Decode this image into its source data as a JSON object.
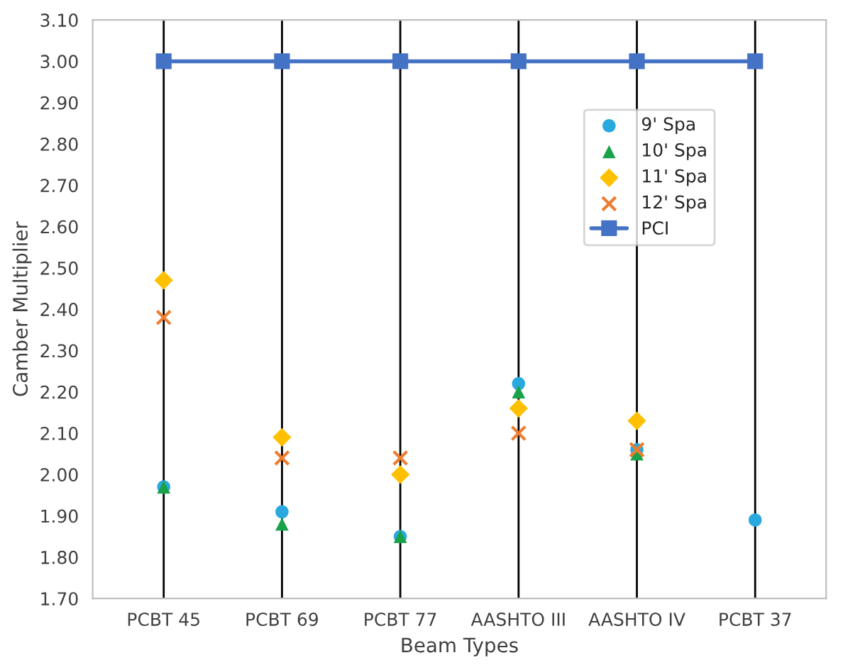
{
  "chart_data": {
    "type": "scatter",
    "xlabel": "Beam Types",
    "ylabel": "Camber Multiplier",
    "categories": [
      "PCBT 45",
      "PCBT 69",
      "PCBT 77",
      "AASHTO III",
      "AASHTO IV",
      "PCBT 37"
    ],
    "series": [
      {
        "name": "9' Spa",
        "marker": "circle",
        "color": "#2aa9e0",
        "values": [
          1.97,
          1.91,
          1.85,
          2.22,
          2.06,
          1.89
        ]
      },
      {
        "name": "10' Spa",
        "marker": "triangle",
        "color": "#1aa24a",
        "values": [
          1.97,
          1.88,
          1.85,
          2.2,
          2.05,
          null
        ]
      },
      {
        "name": "11' Spa",
        "marker": "diamond",
        "color": "#ffc000",
        "values": [
          2.47,
          2.09,
          2.0,
          2.16,
          2.13,
          null
        ]
      },
      {
        "name": "12' Spa",
        "marker": "cross",
        "color": "#ed7d31",
        "values": [
          2.38,
          2.04,
          2.04,
          2.1,
          2.06,
          null
        ]
      },
      {
        "name": "PCI",
        "type": "line",
        "marker": "square",
        "line_style": "solid",
        "color": "#4472c4",
        "values": [
          3.0,
          3.0,
          3.0,
          3.0,
          3.0,
          3.0
        ]
      }
    ],
    "ylim": [
      1.7,
      3.1
    ],
    "yticks": [
      {
        "value": 1.7,
        "label": "1.70"
      },
      {
        "value": 1.8,
        "label": "1.80"
      },
      {
        "value": 1.9,
        "label": "1.90"
      },
      {
        "value": 2.0,
        "label": "2.00"
      },
      {
        "value": 2.1,
        "label": "2.10"
      },
      {
        "value": 2.2,
        "label": "2.20"
      },
      {
        "value": 2.3,
        "label": "2.30"
      },
      {
        "value": 2.4,
        "label": "2.40"
      },
      {
        "value": 2.5,
        "label": "2.50"
      },
      {
        "value": 2.6,
        "label": "2.60"
      },
      {
        "value": 2.7,
        "label": "2.70"
      },
      {
        "value": 2.8,
        "label": "2.80"
      },
      {
        "value": 2.9,
        "label": "2.90"
      },
      {
        "value": 3.0,
        "label": "3.00"
      },
      {
        "value": 3.1,
        "label": "3.10"
      }
    ],
    "grid": "x",
    "legend": "upper right"
  }
}
